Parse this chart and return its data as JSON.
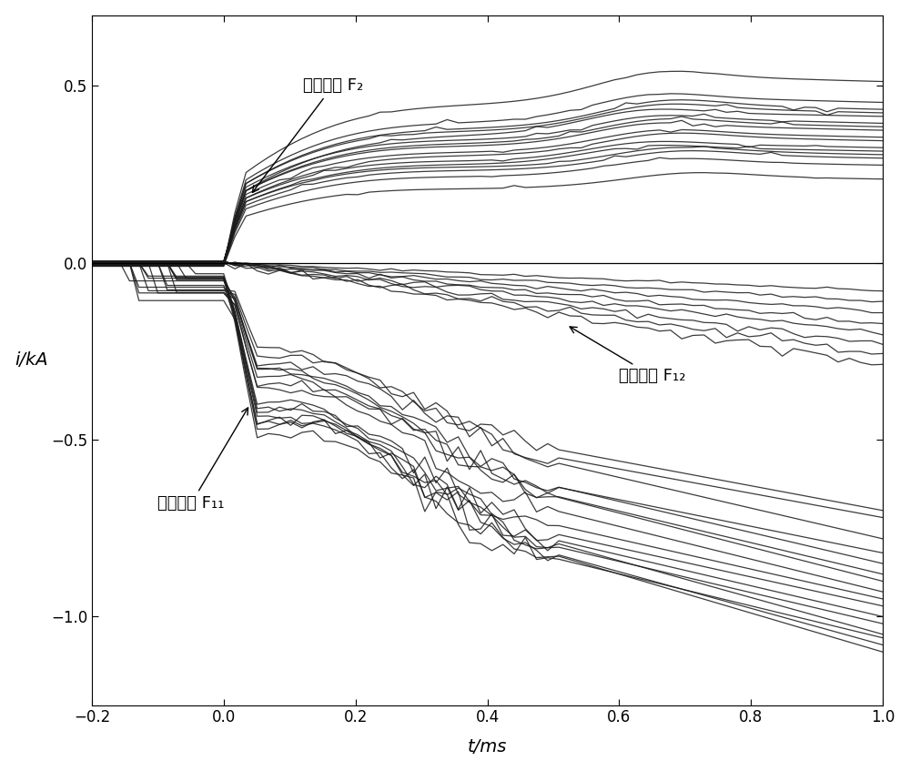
{
  "xlim": [
    -0.2,
    1.0
  ],
  "ylim": [
    -1.25,
    0.7
  ],
  "xlabel": "t/ms",
  "ylabel": "i/kA",
  "label_f2": "反向故障 F₂",
  "label_f11": "正向故障 F₁₁",
  "label_f12": "正向故障 F₁₂",
  "xticks": [
    -0.2,
    0.0,
    0.2,
    0.4,
    0.6,
    0.8,
    1.0
  ],
  "yticks": [
    -1.0,
    -0.5,
    0.0,
    0.5
  ],
  "linecolor": "#1a1a1a",
  "linewidth": 0.9,
  "figsize": [
    10.0,
    8.47
  ]
}
